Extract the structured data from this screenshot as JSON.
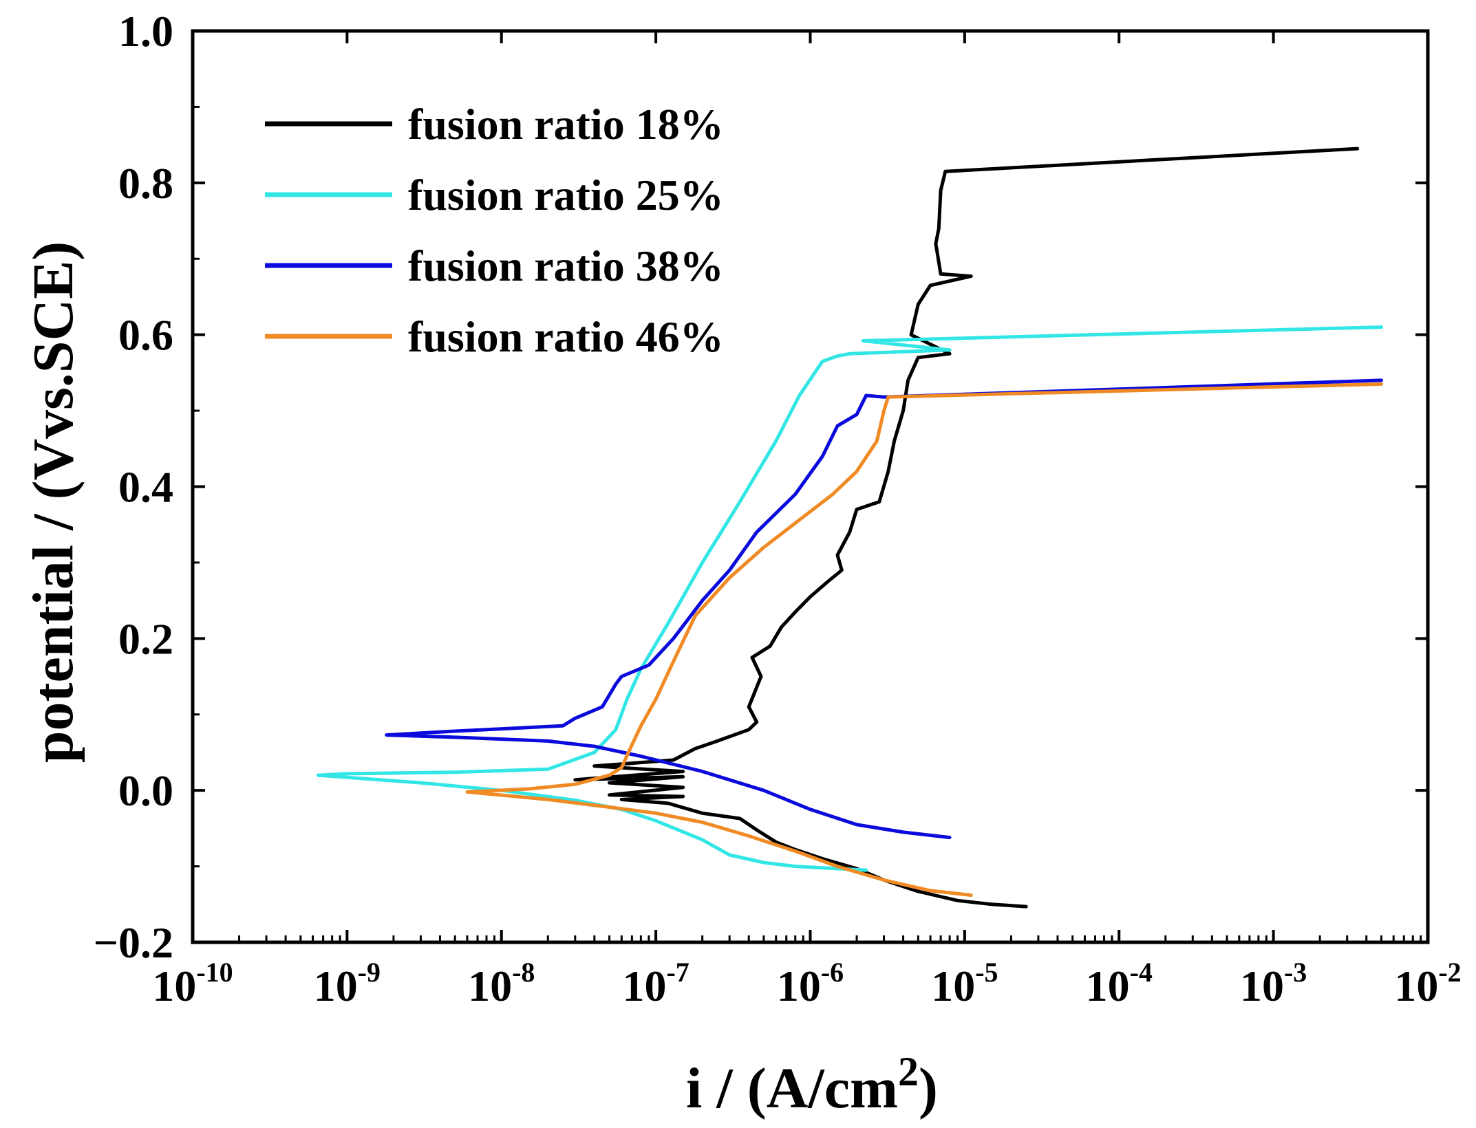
{
  "chart_data": {
    "type": "line",
    "title": "",
    "xlabel": "i / (A/cm",
    "xlabel_sup": "2",
    "xlabel_close": ")",
    "ylabel": "potential / (Vvs.SCE)",
    "xscale": "log",
    "xlim": [
      1e-10,
      0.01
    ],
    "ylim": [
      -0.2,
      1.0
    ],
    "x_ticks": [
      {
        "base": "10",
        "exp": "-10"
      },
      {
        "base": "10",
        "exp": "-9"
      },
      {
        "base": "10",
        "exp": "-8"
      },
      {
        "base": "10",
        "exp": "-7"
      },
      {
        "base": "10",
        "exp": "-6"
      },
      {
        "base": "10",
        "exp": "-5"
      },
      {
        "base": "10",
        "exp": "-4"
      },
      {
        "base": "10",
        "exp": "-3"
      },
      {
        "base": "10",
        "exp": "-2"
      }
    ],
    "y_ticks": [
      "−0.2",
      "0.0",
      "0.2",
      "0.4",
      "0.6",
      "0.8",
      "1.0"
    ],
    "legend_position": "top-left",
    "series": [
      {
        "name": "fusion ratio 18%",
        "color": "#000000",
        "points": [
          [
            2.5e-05,
            -0.153
          ],
          [
            1.5e-05,
            -0.15
          ],
          [
            9e-06,
            -0.145
          ],
          [
            5e-06,
            -0.133
          ],
          [
            3e-06,
            -0.118
          ],
          [
            2e-06,
            -0.103
          ],
          [
            1.2e-06,
            -0.09
          ],
          [
            8e-07,
            -0.078
          ],
          [
            6e-07,
            -0.068
          ],
          [
            4.5e-07,
            -0.052
          ],
          [
            3.5e-07,
            -0.037
          ],
          [
            2e-07,
            -0.03
          ],
          [
            1.2e-07,
            -0.017
          ],
          [
            6e-08,
            -0.012
          ],
          [
            1.5e-07,
            -0.008
          ],
          [
            5e-08,
            -0.006
          ],
          [
            1.5e-07,
            0.004
          ],
          [
            5e-08,
            0.01
          ],
          [
            1.5e-07,
            0.018
          ],
          [
            3e-08,
            0.014
          ],
          [
            1.5e-07,
            0.025
          ],
          [
            4e-08,
            0.032
          ],
          [
            1.3e-07,
            0.04
          ],
          [
            1.8e-07,
            0.055
          ],
          [
            2.5e-07,
            0.065
          ],
          [
            4e-07,
            0.08
          ],
          [
            4.5e-07,
            0.09
          ],
          [
            4e-07,
            0.11
          ],
          [
            4.8e-07,
            0.15
          ],
          [
            4.2e-07,
            0.175
          ],
          [
            5.5e-07,
            0.19
          ],
          [
            6.5e-07,
            0.215
          ],
          [
            8e-07,
            0.235
          ],
          [
            1e-06,
            0.255
          ],
          [
            1.3e-06,
            0.275
          ],
          [
            1.6e-06,
            0.29
          ],
          [
            1.5e-06,
            0.31
          ],
          [
            1.8e-06,
            0.34
          ],
          [
            2e-06,
            0.37
          ],
          [
            2.8e-06,
            0.38
          ],
          [
            3.2e-06,
            0.42
          ],
          [
            3.5e-06,
            0.46
          ],
          [
            4e-06,
            0.5
          ],
          [
            4.3e-06,
            0.54
          ],
          [
            5e-06,
            0.57
          ],
          [
            8e-06,
            0.575
          ],
          [
            4.5e-06,
            0.6
          ],
          [
            5e-06,
            0.64
          ],
          [
            6e-06,
            0.665
          ],
          [
            1.1e-05,
            0.677
          ],
          [
            7e-06,
            0.68
          ],
          [
            6.5e-06,
            0.72
          ],
          [
            6.8e-06,
            0.74
          ],
          [
            7e-06,
            0.79
          ],
          [
            7.5e-06,
            0.815
          ],
          [
            0.0035,
            0.845
          ]
        ]
      },
      {
        "name": "fusion ratio 25%",
        "color": "#33e6e6",
        "points": [
          [
            2.3e-06,
            -0.105
          ],
          [
            1.5e-06,
            -0.103
          ],
          [
            8e-07,
            -0.1
          ],
          [
            5e-07,
            -0.095
          ],
          [
            3e-07,
            -0.085
          ],
          [
            2e-07,
            -0.065
          ],
          [
            1e-07,
            -0.04
          ],
          [
            6e-08,
            -0.025
          ],
          [
            3e-08,
            -0.013
          ],
          [
            1e-08,
            0.0
          ],
          [
            3e-09,
            0.01
          ],
          [
            6.5e-10,
            0.02
          ],
          [
            1e-09,
            0.022
          ],
          [
            5e-09,
            0.024
          ],
          [
            2e-08,
            0.028
          ],
          [
            4e-08,
            0.05
          ],
          [
            5.5e-08,
            0.08
          ],
          [
            6.5e-08,
            0.12
          ],
          [
            8e-08,
            0.16
          ],
          [
            1.2e-07,
            0.22
          ],
          [
            2e-07,
            0.3
          ],
          [
            3.5e-07,
            0.38
          ],
          [
            6e-07,
            0.46
          ],
          [
            8.5e-07,
            0.52
          ],
          [
            1.2e-06,
            0.565
          ],
          [
            1.5e-06,
            0.572
          ],
          [
            1.8e-06,
            0.575
          ],
          [
            8e-06,
            0.58
          ],
          [
            2.2e-06,
            0.592
          ],
          [
            0.005,
            0.61
          ]
        ]
      },
      {
        "name": "fusion ratio 38%",
        "color": "#0a0adc",
        "points": [
          [
            8e-06,
            -0.062
          ],
          [
            4e-06,
            -0.055
          ],
          [
            2e-06,
            -0.045
          ],
          [
            1e-06,
            -0.025
          ],
          [
            5e-07,
            0.0
          ],
          [
            2e-07,
            0.025
          ],
          [
            8e-08,
            0.045
          ],
          [
            4e-08,
            0.058
          ],
          [
            2e-08,
            0.065
          ],
          [
            5e-09,
            0.07
          ],
          [
            1.8e-09,
            0.073
          ],
          [
            5e-09,
            0.078
          ],
          [
            2.5e-08,
            0.085
          ],
          [
            3e-08,
            0.095
          ],
          [
            4.5e-08,
            0.11
          ],
          [
            5.5e-08,
            0.14
          ],
          [
            6e-08,
            0.15
          ],
          [
            9e-08,
            0.165
          ],
          [
            1.3e-07,
            0.2
          ],
          [
            2e-07,
            0.25
          ],
          [
            3e-07,
            0.29
          ],
          [
            4.5e-07,
            0.34
          ],
          [
            8e-07,
            0.39
          ],
          [
            1.2e-06,
            0.44
          ],
          [
            1.5e-06,
            0.48
          ],
          [
            2e-06,
            0.495
          ],
          [
            2.3e-06,
            0.52
          ],
          [
            3e-06,
            0.518
          ],
          [
            0.005,
            0.54
          ]
        ]
      },
      {
        "name": "fusion ratio 46%",
        "color": "#f08a24",
        "points": [
          [
            1.1e-05,
            -0.138
          ],
          [
            6e-06,
            -0.132
          ],
          [
            3e-06,
            -0.118
          ],
          [
            1.5e-06,
            -0.1
          ],
          [
            8e-07,
            -0.08
          ],
          [
            4e-07,
            -0.06
          ],
          [
            2e-07,
            -0.042
          ],
          [
            1e-07,
            -0.03
          ],
          [
            5e-08,
            -0.022
          ],
          [
            2e-08,
            -0.012
          ],
          [
            6e-09,
            -0.002
          ],
          [
            1.5e-08,
            0.002
          ],
          [
            3e-08,
            0.008
          ],
          [
            5e-08,
            0.02
          ],
          [
            6e-08,
            0.03
          ],
          [
            7e-08,
            0.06
          ],
          [
            8e-08,
            0.085
          ],
          [
            1e-07,
            0.12
          ],
          [
            1.3e-07,
            0.17
          ],
          [
            1.8e-07,
            0.23
          ],
          [
            3e-07,
            0.28
          ],
          [
            5e-07,
            0.32
          ],
          [
            9e-07,
            0.36
          ],
          [
            1.4e-06,
            0.39
          ],
          [
            2e-06,
            0.42
          ],
          [
            2.7e-06,
            0.46
          ],
          [
            3e-06,
            0.5
          ],
          [
            3.2e-06,
            0.518
          ],
          [
            0.005,
            0.535
          ]
        ]
      }
    ]
  }
}
